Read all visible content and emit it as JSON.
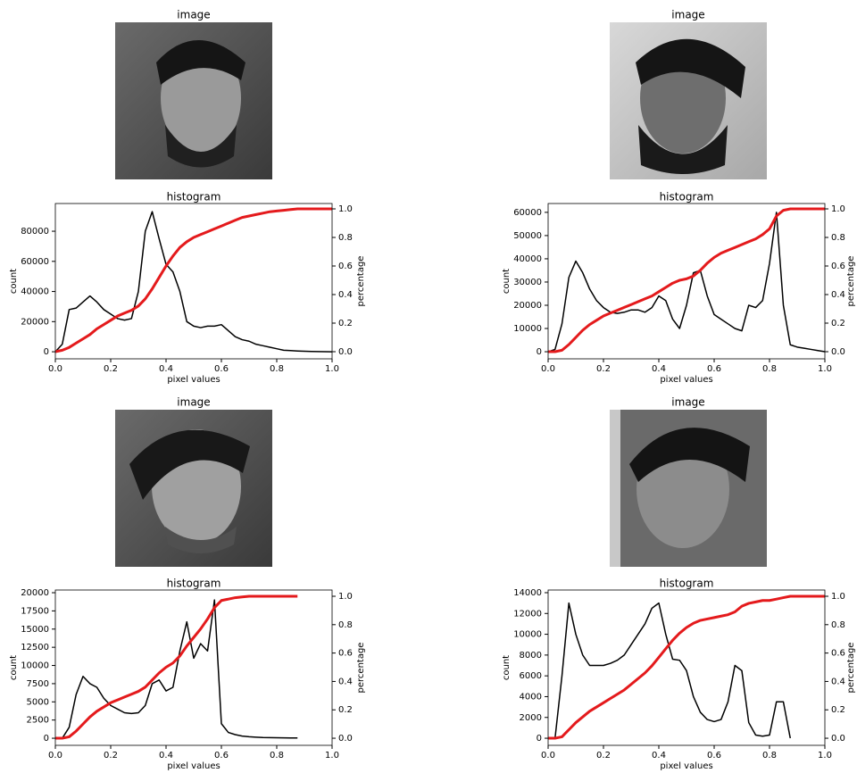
{
  "images": [
    {
      "title": "image"
    },
    {
      "title": "image"
    },
    {
      "title": "image"
    },
    {
      "title": "image"
    }
  ],
  "chart_data": [
    {
      "type": "line",
      "title": "histogram",
      "xlabel": "pixel values",
      "ylabel": "count",
      "y2label": "percentage",
      "x": [
        0,
        0.025,
        0.05,
        0.075,
        0.1,
        0.125,
        0.15,
        0.175,
        0.2,
        0.225,
        0.25,
        0.275,
        0.3,
        0.325,
        0.35,
        0.375,
        0.4,
        0.425,
        0.45,
        0.475,
        0.5,
        0.525,
        0.55,
        0.575,
        0.6,
        0.625,
        0.65,
        0.675,
        0.7,
        0.725,
        0.75,
        0.775,
        0.8,
        0.825,
        0.85,
        0.875,
        0.9,
        0.925,
        0.95,
        0.975,
        1
      ],
      "series": [
        {
          "name": "count",
          "color": "#000000",
          "values": [
            0,
            5000,
            28000,
            29000,
            33000,
            37000,
            33000,
            28000,
            25000,
            22000,
            21000,
            22000,
            40000,
            80000,
            93000,
            75000,
            58000,
            53000,
            40000,
            20000,
            17000,
            16000,
            17000,
            17000,
            18000,
            14000,
            10000,
            8000,
            7000,
            5000,
            4000,
            3000,
            2000,
            1000,
            800,
            500,
            300,
            200,
            100,
            50,
            0
          ]
        },
        {
          "name": "percentage",
          "color": "#e41a1c",
          "axis": "y2",
          "values": [
            0,
            0.01,
            0.03,
            0.06,
            0.09,
            0.12,
            0.16,
            0.19,
            0.22,
            0.25,
            0.27,
            0.29,
            0.32,
            0.37,
            0.44,
            0.52,
            0.6,
            0.67,
            0.73,
            0.77,
            0.8,
            0.82,
            0.84,
            0.86,
            0.88,
            0.9,
            0.92,
            0.94,
            0.95,
            0.96,
            0.97,
            0.98,
            0.985,
            0.99,
            0.995,
            1,
            1,
            1,
            1,
            1,
            1
          ]
        }
      ],
      "xlim": [
        0,
        1
      ],
      "xticks": [
        {
          "value": 0,
          "label": "0.0"
        },
        0.2,
        0.4,
        0.6,
        0.8,
        {
          "value": 1,
          "label": "1.0"
        }
      ],
      "ylim": [
        -4700,
        98400
      ],
      "yticks": [
        0,
        20000,
        40000,
        60000,
        80000
      ],
      "y2lim": [
        -0.05,
        1.0375
      ],
      "y2ticks": [
        {
          "value": 0,
          "label": "0.0"
        },
        0.2,
        0.4,
        0.6,
        0.8,
        {
          "value": 1,
          "label": "1.0"
        }
      ]
    },
    {
      "type": "line",
      "title": "histogram",
      "xlabel": "pixel values",
      "ylabel": "count",
      "y2label": "percentage",
      "x": [
        0,
        0.025,
        0.05,
        0.075,
        0.1,
        0.125,
        0.15,
        0.175,
        0.2,
        0.225,
        0.25,
        0.275,
        0.3,
        0.325,
        0.35,
        0.375,
        0.4,
        0.425,
        0.45,
        0.475,
        0.5,
        0.525,
        0.55,
        0.575,
        0.6,
        0.625,
        0.65,
        0.675,
        0.7,
        0.725,
        0.75,
        0.775,
        0.8,
        0.825,
        0.85,
        0.875,
        0.9,
        0.925,
        0.95,
        0.975,
        1
      ],
      "series": [
        {
          "name": "count",
          "color": "#000000",
          "values": [
            0,
            1000,
            12000,
            32000,
            39000,
            34000,
            27000,
            22000,
            19000,
            17000,
            16500,
            17000,
            18000,
            18000,
            17000,
            19000,
            24000,
            22000,
            14000,
            10000,
            20000,
            34000,
            35000,
            24000,
            16000,
            14000,
            12000,
            10000,
            9000,
            20000,
            19000,
            22000,
            38000,
            60000,
            20000,
            3000,
            2000,
            1500,
            1000,
            500,
            0
          ]
        },
        {
          "name": "percentage",
          "color": "#e41a1c",
          "axis": "y2",
          "values": [
            0,
            0,
            0.01,
            0.05,
            0.1,
            0.15,
            0.19,
            0.22,
            0.25,
            0.27,
            0.29,
            0.31,
            0.33,
            0.35,
            0.37,
            0.39,
            0.42,
            0.45,
            0.48,
            0.5,
            0.51,
            0.53,
            0.57,
            0.62,
            0.66,
            0.69,
            0.71,
            0.73,
            0.75,
            0.77,
            0.79,
            0.82,
            0.86,
            0.95,
            0.99,
            1,
            1,
            1,
            1,
            1,
            1
          ]
        }
      ],
      "xlim": [
        0,
        1
      ],
      "xticks": [
        {
          "value": 0,
          "label": "0.0"
        },
        0.2,
        0.4,
        0.6,
        0.8,
        {
          "value": 1,
          "label": "1.0"
        }
      ],
      "ylim": [
        -3060,
        63800
      ],
      "yticks": [
        0,
        10000,
        20000,
        30000,
        40000,
        50000,
        60000
      ],
      "y2lim": [
        -0.05,
        1.0375
      ],
      "y2ticks": [
        {
          "value": 0,
          "label": "0.0"
        },
        0.2,
        0.4,
        0.6,
        0.8,
        {
          "value": 1,
          "label": "1.0"
        }
      ]
    },
    {
      "type": "line",
      "title": "histogram",
      "xlabel": "pixel values",
      "ylabel": "count",
      "y2label": "percentage",
      "x": [
        0,
        0.025,
        0.05,
        0.075,
        0.1,
        0.125,
        0.15,
        0.175,
        0.2,
        0.225,
        0.25,
        0.275,
        0.3,
        0.325,
        0.35,
        0.375,
        0.4,
        0.425,
        0.45,
        0.475,
        0.5,
        0.525,
        0.55,
        0.575,
        0.6,
        0.625,
        0.65,
        0.675,
        0.7,
        0.725,
        0.75,
        0.775,
        0.8,
        0.825,
        0.85,
        0.875,
        0.9,
        0.925,
        0.95,
        0.975,
        1
      ],
      "series": [
        {
          "name": "count",
          "color": "#000000",
          "values": [
            0,
            0,
            1500,
            6000,
            8500,
            7500,
            7000,
            5500,
            4500,
            4000,
            3500,
            3400,
            3500,
            4500,
            7500,
            8000,
            6500,
            7000,
            12000,
            16000,
            11000,
            13000,
            12000,
            19000,
            2000,
            800,
            500,
            300,
            200,
            150,
            100,
            80,
            60,
            50,
            40,
            30,
            null,
            null,
            null,
            null,
            null
          ]
        },
        {
          "name": "percentage",
          "color": "#e41a1c",
          "axis": "y2",
          "values": [
            0,
            0,
            0.01,
            0.05,
            0.1,
            0.15,
            0.19,
            0.22,
            0.25,
            0.27,
            0.29,
            0.31,
            0.33,
            0.36,
            0.41,
            0.46,
            0.5,
            0.53,
            0.58,
            0.65,
            0.71,
            0.77,
            0.84,
            0.92,
            0.97,
            0.98,
            0.99,
            0.995,
            1,
            1,
            1,
            1,
            1,
            1,
            1,
            1,
            null,
            null,
            null,
            null,
            null
          ]
        }
      ],
      "xlim": [
        0,
        1
      ],
      "xticks": [
        {
          "value": 0,
          "label": "0.0"
        },
        0.2,
        0.4,
        0.6,
        0.8,
        {
          "value": 1,
          "label": "1.0"
        }
      ],
      "ylim": [
        -975,
        20370
      ],
      "yticks": [
        0,
        2500,
        5000,
        7500,
        10000,
        12500,
        15000,
        17500,
        20000
      ],
      "y2lim": [
        -0.05,
        1.044
      ],
      "y2ticks": [
        {
          "value": 0,
          "label": "0.0"
        },
        0.2,
        0.4,
        0.6,
        0.8,
        {
          "value": 1,
          "label": "1.0"
        }
      ]
    },
    {
      "type": "line",
      "title": "histogram",
      "xlabel": "pixel values",
      "ylabel": "count",
      "y2label": "percentage",
      "x": [
        0,
        0.025,
        0.05,
        0.075,
        0.1,
        0.125,
        0.15,
        0.175,
        0.2,
        0.225,
        0.25,
        0.275,
        0.3,
        0.325,
        0.35,
        0.375,
        0.4,
        0.425,
        0.45,
        0.475,
        0.5,
        0.525,
        0.55,
        0.575,
        0.6,
        0.625,
        0.65,
        0.675,
        0.7,
        0.725,
        0.75,
        0.775,
        0.8,
        0.825,
        0.85,
        0.875,
        0.9,
        0.925,
        0.95,
        0.975,
        1
      ],
      "series": [
        {
          "name": "count",
          "color": "#000000",
          "values": [
            0,
            0,
            6000,
            13000,
            10000,
            8000,
            7000,
            7000,
            7000,
            7200,
            7500,
            8000,
            9000,
            10000,
            11000,
            12500,
            13000,
            10000,
            7600,
            7500,
            6500,
            4000,
            2500,
            1800,
            1600,
            1800,
            3500,
            7000,
            6500,
            1500,
            300,
            200,
            300,
            3500,
            3500,
            0,
            null,
            null,
            null,
            null,
            null
          ]
        },
        {
          "name": "percentage",
          "color": "#e41a1c",
          "axis": "y2",
          "values": [
            0,
            0,
            0.01,
            0.06,
            0.11,
            0.15,
            0.19,
            0.22,
            0.25,
            0.28,
            0.31,
            0.34,
            0.38,
            0.42,
            0.46,
            0.51,
            0.57,
            0.63,
            0.69,
            0.74,
            0.78,
            0.81,
            0.83,
            0.84,
            0.85,
            0.86,
            0.87,
            0.89,
            0.93,
            0.95,
            0.96,
            0.97,
            0.97,
            0.98,
            0.99,
            1,
            1,
            1,
            1,
            1,
            1
          ]
        }
      ],
      "xlim": [
        0,
        1
      ],
      "xticks": [
        {
          "value": 0,
          "label": "0.0"
        },
        0.2,
        0.4,
        0.6,
        0.8,
        {
          "value": 1,
          "label": "1.0"
        }
      ],
      "ylim": [
        -683,
        14256
      ],
      "yticks": [
        0,
        2000,
        4000,
        6000,
        8000,
        10000,
        12000,
        14000
      ],
      "y2lim": [
        -0.05,
        1.044
      ],
      "y2ticks": [
        {
          "value": 0,
          "label": "0.0"
        },
        0.2,
        0.4,
        0.6,
        0.8,
        {
          "value": 1,
          "label": "1.0"
        }
      ]
    }
  ]
}
